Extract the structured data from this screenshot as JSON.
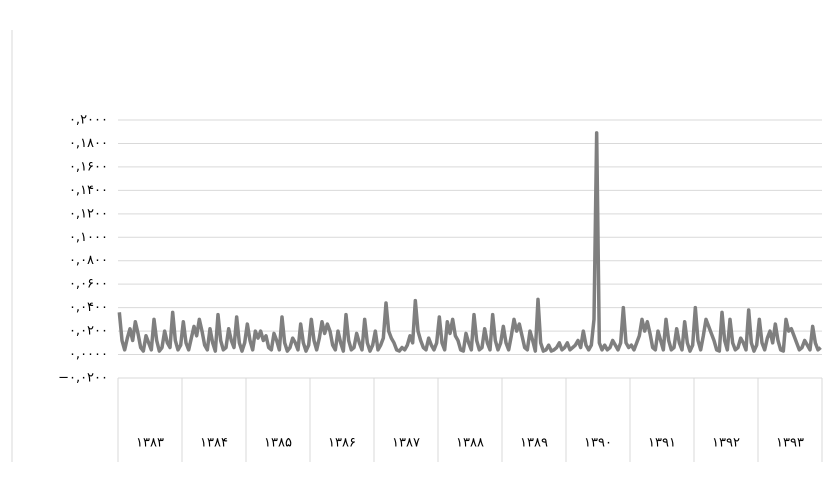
{
  "chart_data": {
    "type": "line",
    "groups": [
      "۱۳۸۳",
      "۱۳۸۴",
      "۱۳۸۵",
      "۱۳۸۶",
      "۱۳۸۷",
      "۱۳۸۸",
      "۱۳۸۹",
      "۱۳۹۰",
      "۱۳۹۱",
      "۱۳۹۲",
      "۱۳۹۳"
    ],
    "series": [
      {
        "color": "#7f7f7f",
        "values": [
          0.036,
          0.012,
          0.004,
          0.014,
          0.022,
          0.012,
          0.028,
          0.018,
          0.006,
          0.003,
          0.016,
          0.01,
          0.004,
          0.03,
          0.012,
          0.003,
          0.006,
          0.02,
          0.01,
          0.006,
          0.036,
          0.012,
          0.004,
          0.008,
          0.028,
          0.01,
          0.004,
          0.014,
          0.024,
          0.016,
          0.03,
          0.02,
          0.008,
          0.004,
          0.022,
          0.01,
          0.003,
          0.034,
          0.012,
          0.004,
          0.006,
          0.022,
          0.012,
          0.006,
          0.032,
          0.01,
          0.003,
          0.01,
          0.026,
          0.012,
          0.004,
          0.02,
          0.014,
          0.02,
          0.012,
          0.016,
          0.006,
          0.004,
          0.018,
          0.012,
          0.004,
          0.032,
          0.01,
          0.003,
          0.006,
          0.014,
          0.01,
          0.004,
          0.026,
          0.01,
          0.003,
          0.008,
          0.03,
          0.012,
          0.004,
          0.014,
          0.028,
          0.018,
          0.026,
          0.02,
          0.008,
          0.004,
          0.02,
          0.01,
          0.003,
          0.034,
          0.012,
          0.004,
          0.006,
          0.018,
          0.01,
          0.004,
          0.03,
          0.01,
          0.003,
          0.008,
          0.02,
          0.004,
          0.008,
          0.014,
          0.044,
          0.02,
          0.014,
          0.01,
          0.004,
          0.003,
          0.006,
          0.004,
          0.008,
          0.016,
          0.01,
          0.046,
          0.02,
          0.012,
          0.006,
          0.004,
          0.014,
          0.008,
          0.004,
          0.01,
          0.032,
          0.01,
          0.004,
          0.028,
          0.018,
          0.03,
          0.016,
          0.012,
          0.004,
          0.003,
          0.018,
          0.01,
          0.004,
          0.034,
          0.012,
          0.004,
          0.006,
          0.022,
          0.01,
          0.004,
          0.034,
          0.012,
          0.004,
          0.01,
          0.024,
          0.01,
          0.004,
          0.016,
          0.03,
          0.02,
          0.026,
          0.016,
          0.006,
          0.004,
          0.02,
          0.012,
          0.003,
          0.047,
          0.01,
          0.003,
          0.004,
          0.008,
          0.003,
          0.004,
          0.006,
          0.01,
          0.004,
          0.006,
          0.01,
          0.004,
          0.006,
          0.008,
          0.012,
          0.006,
          0.02,
          0.008,
          0.004,
          0.008,
          0.03,
          0.189,
          0.01,
          0.004,
          0.008,
          0.004,
          0.006,
          0.012,
          0.008,
          0.004,
          0.01,
          0.04,
          0.01,
          0.006,
          0.008,
          0.004,
          0.01,
          0.016,
          0.03,
          0.02,
          0.028,
          0.018,
          0.006,
          0.004,
          0.02,
          0.012,
          0.004,
          0.03,
          0.012,
          0.004,
          0.006,
          0.022,
          0.01,
          0.004,
          0.028,
          0.01,
          0.003,
          0.008,
          0.04,
          0.012,
          0.004,
          0.016,
          0.03,
          0.024,
          0.018,
          0.012,
          0.004,
          0.003,
          0.036,
          0.012,
          0.004,
          0.03,
          0.01,
          0.004,
          0.006,
          0.014,
          0.01,
          0.004,
          0.038,
          0.01,
          0.003,
          0.008,
          0.03,
          0.01,
          0.004,
          0.014,
          0.02,
          0.01,
          0.026,
          0.012,
          0.004,
          0.003,
          0.03,
          0.02,
          0.022,
          0.016,
          0.01,
          0.004,
          0.006,
          0.012,
          0.008,
          0.004,
          0.024,
          0.01,
          0.004,
          0.006
        ]
      }
    ],
    "ylim": [
      -0.02,
      0.2
    ],
    "yticks": [
      {
        "value": 0.2,
        "label": "۰,۲۰۰۰"
      },
      {
        "value": 0.18,
        "label": "۰,۱۸۰۰"
      },
      {
        "value": 0.16,
        "label": "۰,۱۶۰۰"
      },
      {
        "value": 0.14,
        "label": "۰,۱۴۰۰"
      },
      {
        "value": 0.12,
        "label": "۰,۱۲۰۰"
      },
      {
        "value": 0.1,
        "label": "۰,۱۰۰۰"
      },
      {
        "value": 0.08,
        "label": "۰,۰۸۰۰"
      },
      {
        "value": 0.06,
        "label": "۰,۰۶۰۰"
      },
      {
        "value": 0.04,
        "label": "۰,۰۴۰۰"
      },
      {
        "value": 0.02,
        "label": "۰,۰۲۰۰"
      },
      {
        "value": 0,
        "label": "۰,۰۰۰۰"
      },
      {
        "value": -0.02,
        "label": "−۰,۰۲۰۰"
      }
    ],
    "grid": true
  }
}
